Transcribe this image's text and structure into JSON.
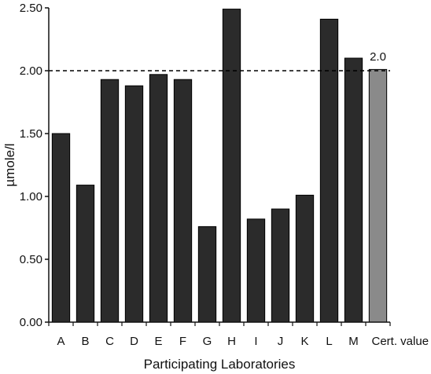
{
  "chart_data": {
    "type": "bar",
    "xlabel": "Participating Laboratories",
    "ylabel": "µmole/l",
    "ylim": [
      0,
      2.5
    ],
    "yticks": [
      "0.00",
      "0.50",
      "1.00",
      "1.50",
      "2.00",
      "2.50"
    ],
    "categories": [
      "A",
      "B",
      "C",
      "D",
      "E",
      "F",
      "G",
      "H",
      "I",
      "J",
      "K",
      "L",
      "M",
      "Cert. value"
    ],
    "values": [
      1.5,
      1.09,
      1.93,
      1.88,
      1.97,
      1.93,
      0.76,
      2.49,
      0.82,
      0.9,
      1.01,
      2.41,
      2.1,
      2.01
    ],
    "reference_line": {
      "value": 2.0,
      "label": "2.0",
      "style": "dashed"
    },
    "colors": {
      "bar": "#2b2b2b",
      "certified_bar": "#8a8a8a",
      "axis": "#111111"
    }
  }
}
